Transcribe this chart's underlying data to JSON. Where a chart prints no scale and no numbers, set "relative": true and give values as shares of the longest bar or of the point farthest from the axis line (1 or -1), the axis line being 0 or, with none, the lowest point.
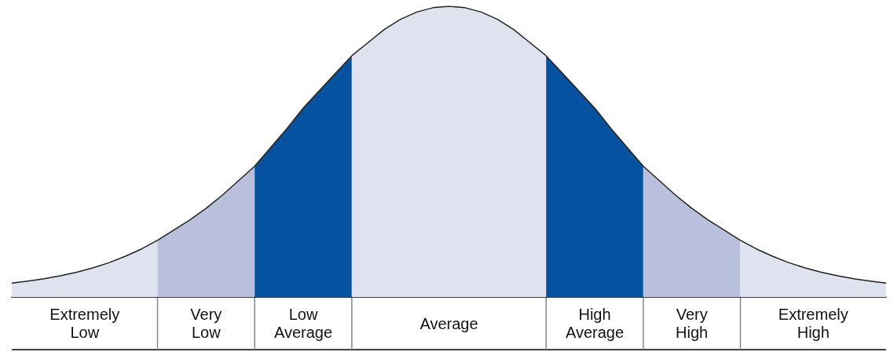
{
  "chart_data": {
    "type": "area",
    "relative": true,
    "legend": false,
    "grid": false,
    "marker": "none",
    "categories": [
      null,
      null,
      null,
      null,
      null,
      null,
      null,
      null,
      null,
      null,
      null,
      null,
      null,
      null,
      null,
      null,
      null,
      null,
      null,
      null,
      null,
      null,
      null,
      null,
      null,
      null,
      null,
      null,
      null,
      null,
      null,
      null,
      null,
      null,
      null,
      null,
      null,
      null,
      null,
      null,
      null,
      null,
      null,
      null,
      null,
      null,
      null,
      null,
      null,
      null,
      null,
      null,
      null,
      null,
      null
    ],
    "series": [
      {
        "name": "Extremely Low",
        "color": "#dfe3f0",
        "values": [
          0.048,
          0.055,
          0.063,
          0.073,
          0.085,
          0.1,
          0.118,
          0.14,
          0.165,
          0.195,
          null,
          null,
          null,
          null,
          null,
          null,
          null,
          null,
          null,
          null,
          null,
          null,
          null,
          null,
          null,
          null,
          null,
          null,
          null,
          null,
          null,
          null,
          null,
          null,
          null,
          null,
          null,
          null,
          null,
          null,
          null,
          null,
          null,
          null,
          null,
          null,
          null,
          null,
          null,
          null,
          null,
          null,
          null,
          null,
          null
        ]
      },
      {
        "name": "Very Low",
        "color": "#b9c0de",
        "values": [
          null,
          null,
          null,
          null,
          null,
          null,
          null,
          null,
          null,
          0.195,
          0.23,
          0.265,
          0.305,
          0.35,
          0.4,
          0.45,
          null,
          null,
          null,
          null,
          null,
          null,
          null,
          null,
          null,
          null,
          null,
          null,
          null,
          null,
          null,
          null,
          null,
          null,
          null,
          null,
          null,
          null,
          null,
          null,
          null,
          null,
          null,
          null,
          null,
          null,
          null,
          null,
          null,
          null,
          null,
          null,
          null,
          null,
          null
        ]
      },
      {
        "name": "Low Average",
        "color": "#0553a0",
        "values": [
          null,
          null,
          null,
          null,
          null,
          null,
          null,
          null,
          null,
          null,
          null,
          null,
          null,
          null,
          null,
          0.45,
          0.515,
          0.58,
          0.65,
          0.71,
          0.77,
          0.83,
          null,
          null,
          null,
          null,
          null,
          null,
          null,
          null,
          null,
          null,
          null,
          null,
          null,
          null,
          null,
          null,
          null,
          null,
          null,
          null,
          null,
          null,
          null,
          null,
          null,
          null,
          null,
          null,
          null,
          null,
          null,
          null,
          null
        ]
      },
      {
        "name": "Average",
        "color": "#dfe3f0",
        "values": [
          null,
          null,
          null,
          null,
          null,
          null,
          null,
          null,
          null,
          null,
          null,
          null,
          null,
          null,
          null,
          null,
          null,
          null,
          null,
          null,
          null,
          0.83,
          0.875,
          0.92,
          0.955,
          0.98,
          0.995,
          1.0,
          0.995,
          0.98,
          0.955,
          0.92,
          0.875,
          0.83,
          null,
          null,
          null,
          null,
          null,
          null,
          null,
          null,
          null,
          null,
          null,
          null,
          null,
          null,
          null,
          null,
          null,
          null,
          null,
          null,
          null
        ]
      },
      {
        "name": "High Average",
        "color": "#0553a0",
        "values": [
          null,
          null,
          null,
          null,
          null,
          null,
          null,
          null,
          null,
          null,
          null,
          null,
          null,
          null,
          null,
          null,
          null,
          null,
          null,
          null,
          null,
          null,
          null,
          null,
          null,
          null,
          null,
          null,
          null,
          null,
          null,
          null,
          null,
          0.83,
          0.77,
          0.71,
          0.65,
          0.58,
          0.515,
          0.45,
          null,
          null,
          null,
          null,
          null,
          null,
          null,
          null,
          null,
          null,
          null,
          null,
          null,
          null,
          null
        ]
      },
      {
        "name": "Very High",
        "color": "#b9c0de",
        "values": [
          null,
          null,
          null,
          null,
          null,
          null,
          null,
          null,
          null,
          null,
          null,
          null,
          null,
          null,
          null,
          null,
          null,
          null,
          null,
          null,
          null,
          null,
          null,
          null,
          null,
          null,
          null,
          null,
          null,
          null,
          null,
          null,
          null,
          null,
          null,
          null,
          null,
          null,
          null,
          0.45,
          0.4,
          0.35,
          0.305,
          0.265,
          0.23,
          0.195,
          null,
          null,
          null,
          null,
          null,
          null,
          null,
          null,
          null
        ]
      },
      {
        "name": "Extremely High",
        "color": "#dfe3f0",
        "values": [
          null,
          null,
          null,
          null,
          null,
          null,
          null,
          null,
          null,
          null,
          null,
          null,
          null,
          null,
          null,
          null,
          null,
          null,
          null,
          null,
          null,
          null,
          null,
          null,
          null,
          null,
          null,
          null,
          null,
          null,
          null,
          null,
          null,
          null,
          null,
          null,
          null,
          null,
          null,
          null,
          null,
          null,
          null,
          null,
          null,
          0.195,
          0.165,
          0.14,
          0.118,
          0.1,
          0.085,
          0.073,
          0.063,
          0.055,
          0.048
        ]
      }
    ]
  }
}
